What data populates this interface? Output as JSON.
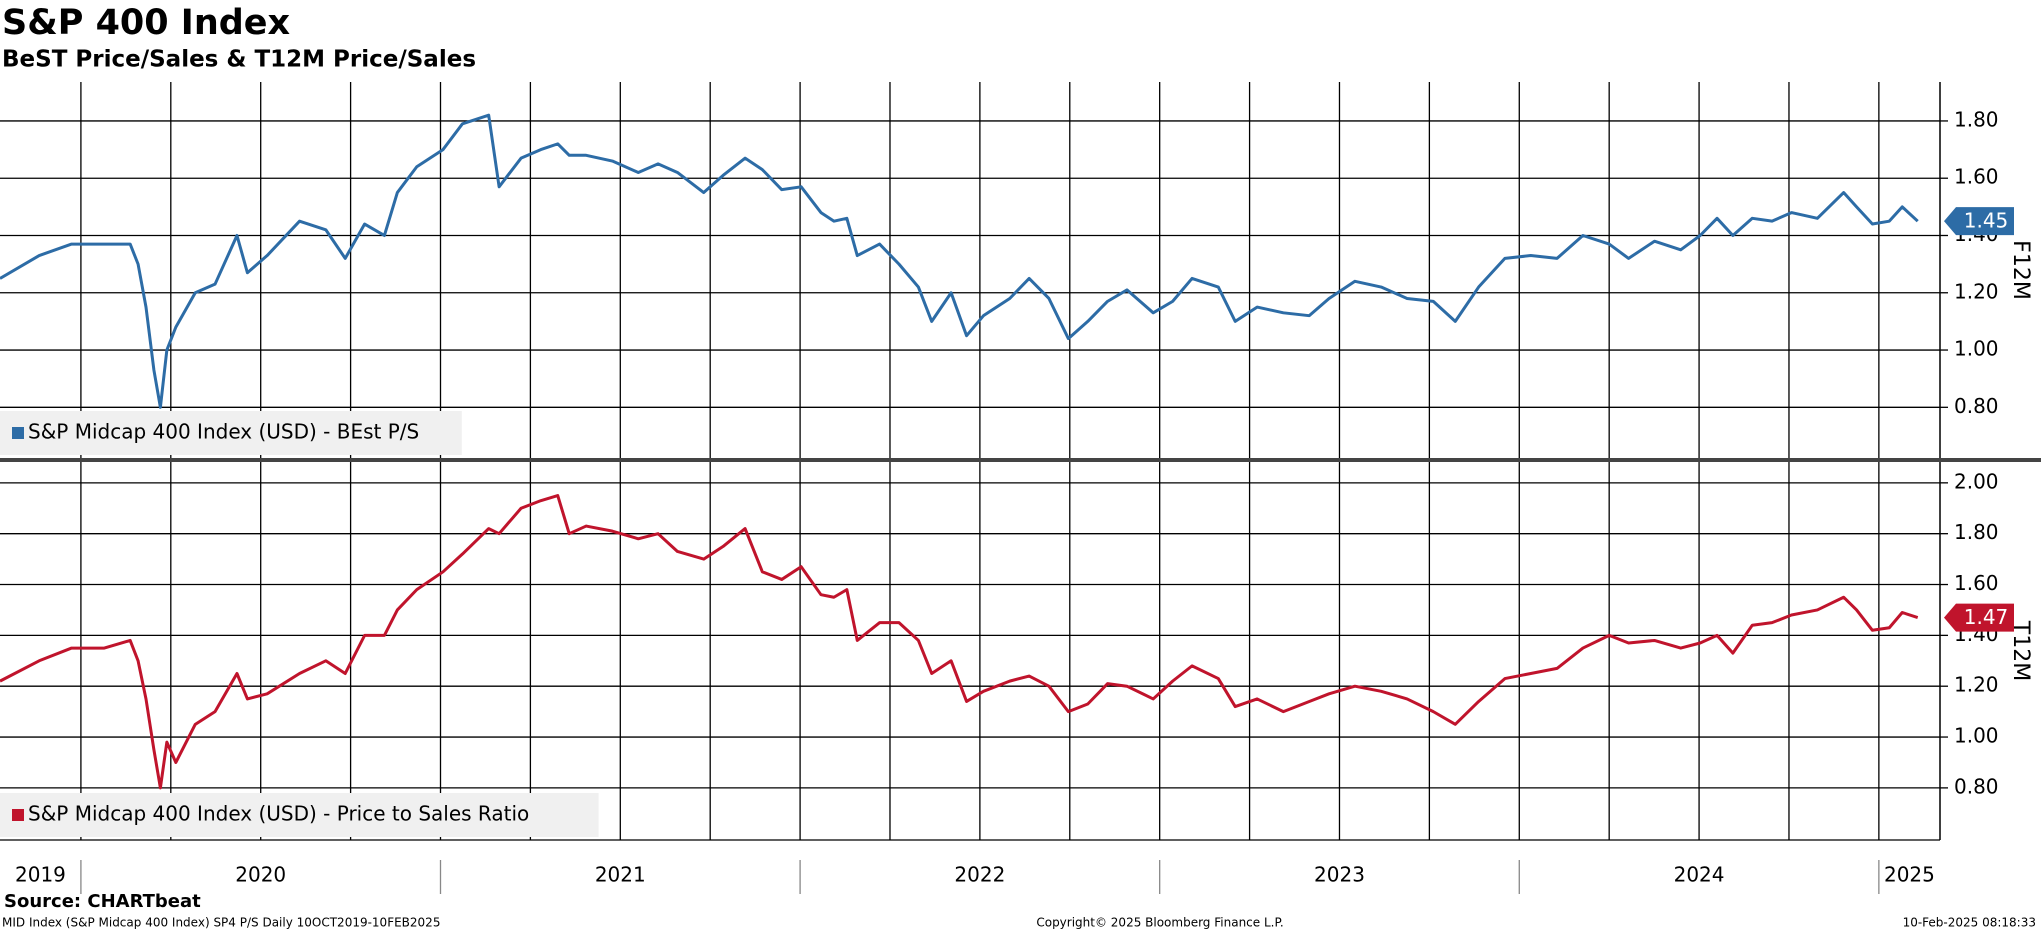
{
  "title": "S&P 400 Index",
  "subtitle": "BeST Price/Sales & T12M Price/Sales",
  "source": "Source: CHARTbeat",
  "footer": {
    "left": "MID Index (S&P Midcap 400 Index) SP4 P/S  Daily 10OCT2019-10FEB2025",
    "center": "Copyright© 2025 Bloomberg Finance L.P.",
    "right": "10-Feb-2025 08:18:33"
  },
  "chart_data": [
    {
      "type": "line",
      "y_axis_label": "F12M",
      "xlim": [
        2019.775,
        2025.17
      ],
      "xticks": [
        2020,
        2020.25,
        2020.5,
        2020.75,
        2021,
        2021.25,
        2021.5,
        2021.75,
        2022,
        2022.25,
        2022.5,
        2022.75,
        2023,
        2023.25,
        2023.5,
        2023.75,
        2024,
        2024.25,
        2024.5,
        2024.75,
        2025
      ],
      "ylim": [
        0.623,
        1.936
      ],
      "yticks": [
        {
          "value": 0.8,
          "label": "0.80"
        },
        {
          "value": 1.0,
          "label": "1.00"
        },
        {
          "value": 1.2,
          "label": "1.20"
        },
        {
          "value": 1.4,
          "label": "1.40"
        },
        {
          "value": 1.6,
          "label": "1.60"
        },
        {
          "value": 1.8,
          "label": "1.80"
        }
      ],
      "grid": true,
      "legend": "lower left",
      "x": [
        2019.775,
        2019.884,
        2019.974,
        2020.065,
        2020.137,
        2020.159,
        2020.181,
        2020.203,
        2020.221,
        2020.239,
        2020.264,
        2020.318,
        2020.373,
        2020.434,
        2020.463,
        2020.518,
        2020.608,
        2020.681,
        2020.735,
        2020.789,
        2020.844,
        2020.88,
        2020.934,
        2021.007,
        2021.061,
        2021.134,
        2021.163,
        2021.224,
        2021.279,
        2021.326,
        2021.358,
        2021.405,
        2021.478,
        2021.55,
        2021.605,
        2021.659,
        2021.732,
        2021.786,
        2021.847,
        2021.895,
        2021.949,
        2022.003,
        2022.058,
        2022.094,
        2022.13,
        2022.159,
        2022.221,
        2022.275,
        2022.329,
        2022.366,
        2022.42,
        2022.463,
        2022.51,
        2022.583,
        2022.637,
        2022.692,
        2022.746,
        2022.8,
        2022.855,
        2022.909,
        2022.982,
        2023.036,
        2023.09,
        2023.163,
        2023.21,
        2023.271,
        2023.344,
        2023.416,
        2023.471,
        2023.543,
        2023.616,
        2023.688,
        2023.761,
        2023.822,
        2023.887,
        2023.96,
        2024.032,
        2024.105,
        2024.177,
        2024.25,
        2024.304,
        2024.376,
        2024.449,
        2024.503,
        2024.55,
        2024.594,
        2024.648,
        2024.703,
        2024.757,
        2024.829,
        2024.902,
        2024.938,
        2024.982,
        2025.029,
        2025.065,
        2025.108
      ],
      "series": [
        {
          "name": "S&P Midcap 400 Index (USD) - BEst P/S",
          "color": "#2d6ca6",
          "last_label": "1.45",
          "values": [
            1.25,
            1.33,
            1.37,
            1.37,
            1.37,
            1.3,
            1.15,
            0.93,
            0.8,
            1.0,
            1.08,
            1.2,
            1.23,
            1.4,
            1.27,
            1.33,
            1.45,
            1.42,
            1.32,
            1.44,
            1.4,
            1.55,
            1.64,
            1.7,
            1.79,
            1.82,
            1.57,
            1.67,
            1.7,
            1.72,
            1.68,
            1.68,
            1.66,
            1.62,
            1.65,
            1.62,
            1.55,
            1.61,
            1.67,
            1.63,
            1.56,
            1.57,
            1.48,
            1.45,
            1.46,
            1.33,
            1.37,
            1.3,
            1.22,
            1.1,
            1.2,
            1.05,
            1.12,
            1.18,
            1.25,
            1.18,
            1.04,
            1.1,
            1.17,
            1.21,
            1.13,
            1.17,
            1.25,
            1.22,
            1.1,
            1.15,
            1.13,
            1.12,
            1.18,
            1.24,
            1.22,
            1.18,
            1.17,
            1.1,
            1.22,
            1.32,
            1.33,
            1.32,
            1.4,
            1.37,
            1.32,
            1.38,
            1.35,
            1.4,
            1.46,
            1.4,
            1.46,
            1.45,
            1.48,
            1.46,
            1.55,
            1.5,
            1.44,
            1.45,
            1.5,
            1.45
          ]
        }
      ]
    },
    {
      "type": "line",
      "y_axis_label": "T12M",
      "xlim": [
        2019.775,
        2025.17
      ],
      "xticks": [
        2020,
        2020.25,
        2020.5,
        2020.75,
        2021,
        2021.25,
        2021.5,
        2021.75,
        2022,
        2022.25,
        2022.5,
        2022.75,
        2023,
        2023.25,
        2023.5,
        2023.75,
        2024,
        2024.25,
        2024.5,
        2024.75,
        2025
      ],
      "x_labels": [
        "2019",
        "2020",
        "2021",
        "2022",
        "2023",
        "2024",
        "2025"
      ],
      "ylim": [
        0.595,
        2.082
      ],
      "yticks": [
        {
          "value": 0.8,
          "label": "0.80"
        },
        {
          "value": 1.0,
          "label": "1.00"
        },
        {
          "value": 1.2,
          "label": "1.20"
        },
        {
          "value": 1.4,
          "label": "1.40"
        },
        {
          "value": 1.6,
          "label": "1.60"
        },
        {
          "value": 1.8,
          "label": "1.80"
        },
        {
          "value": 2.0,
          "label": "2.00"
        }
      ],
      "grid": true,
      "legend": "lower left",
      "x": [
        2019.775,
        2019.884,
        2019.974,
        2020.065,
        2020.137,
        2020.159,
        2020.181,
        2020.203,
        2020.221,
        2020.239,
        2020.264,
        2020.318,
        2020.373,
        2020.434,
        2020.463,
        2020.518,
        2020.608,
        2020.681,
        2020.735,
        2020.789,
        2020.844,
        2020.88,
        2020.934,
        2021.007,
        2021.061,
        2021.134,
        2021.163,
        2021.224,
        2021.279,
        2021.326,
        2021.358,
        2021.405,
        2021.478,
        2021.55,
        2021.605,
        2021.659,
        2021.732,
        2021.786,
        2021.847,
        2021.895,
        2021.949,
        2022.003,
        2022.058,
        2022.094,
        2022.13,
        2022.159,
        2022.221,
        2022.275,
        2022.329,
        2022.366,
        2022.42,
        2022.463,
        2022.51,
        2022.583,
        2022.637,
        2022.692,
        2022.746,
        2022.8,
        2022.855,
        2022.909,
        2022.982,
        2023.036,
        2023.09,
        2023.163,
        2023.21,
        2023.271,
        2023.344,
        2023.416,
        2023.471,
        2023.543,
        2023.616,
        2023.688,
        2023.761,
        2023.822,
        2023.887,
        2023.96,
        2024.032,
        2024.105,
        2024.177,
        2024.25,
        2024.304,
        2024.376,
        2024.449,
        2024.503,
        2024.55,
        2024.594,
        2024.648,
        2024.703,
        2024.757,
        2024.829,
        2024.902,
        2024.938,
        2024.982,
        2025.029,
        2025.065,
        2025.108
      ],
      "series": [
        {
          "name": "S&P Midcap 400 Index (USD) - Price to Sales Ratio",
          "color": "#c0142c",
          "last_label": "1.47",
          "values": [
            1.22,
            1.3,
            1.35,
            1.35,
            1.38,
            1.3,
            1.15,
            0.95,
            0.8,
            0.98,
            0.9,
            1.05,
            1.1,
            1.25,
            1.15,
            1.17,
            1.25,
            1.3,
            1.25,
            1.4,
            1.4,
            1.5,
            1.58,
            1.65,
            1.72,
            1.82,
            1.8,
            1.9,
            1.93,
            1.95,
            1.8,
            1.83,
            1.81,
            1.78,
            1.8,
            1.73,
            1.7,
            1.75,
            1.82,
            1.65,
            1.62,
            1.67,
            1.56,
            1.55,
            1.58,
            1.38,
            1.45,
            1.45,
            1.38,
            1.25,
            1.3,
            1.14,
            1.18,
            1.22,
            1.24,
            1.2,
            1.1,
            1.13,
            1.21,
            1.2,
            1.15,
            1.22,
            1.28,
            1.23,
            1.12,
            1.15,
            1.1,
            1.14,
            1.17,
            1.2,
            1.18,
            1.15,
            1.1,
            1.05,
            1.14,
            1.23,
            1.25,
            1.27,
            1.35,
            1.4,
            1.37,
            1.38,
            1.35,
            1.37,
            1.4,
            1.33,
            1.44,
            1.45,
            1.48,
            1.5,
            1.55,
            1.5,
            1.42,
            1.43,
            1.49,
            1.47
          ]
        }
      ]
    }
  ]
}
